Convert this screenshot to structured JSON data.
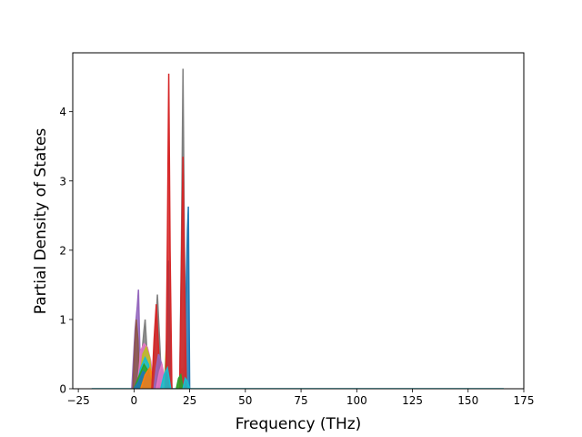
{
  "chart_data": {
    "type": "area",
    "title": "",
    "xlabel": "Frequency (THz)",
    "ylabel": "Partial Density of States",
    "xlim": [
      -27.5,
      175
    ],
    "ylim": [
      0,
      4.85
    ],
    "xticks": [
      -25,
      0,
      25,
      50,
      75,
      100,
      125,
      150,
      175
    ],
    "yticks": [
      0,
      1,
      2,
      3,
      4
    ],
    "grid": false,
    "legend": "none",
    "baseline_range": [
      -19,
      166
    ],
    "series": [
      {
        "color": "#9467bd",
        "x": [
          -1,
          0.5,
          1.5,
          2,
          2.6,
          3.5
        ],
        "y": [
          0,
          0.85,
          1.2,
          1.43,
          0.6,
          0
        ]
      },
      {
        "color": "#8c564b",
        "x": [
          -0.5,
          0.3,
          1,
          1.8,
          2.5
        ],
        "y": [
          0,
          0.6,
          1.0,
          0.7,
          0
        ]
      },
      {
        "color": "#7f7f7f",
        "x": [
          2.2,
          3.5,
          4.5,
          5,
          5.8,
          7
        ],
        "y": [
          0,
          0.5,
          0.85,
          1.0,
          0.55,
          0
        ]
      },
      {
        "color": "#e377c2",
        "x": [
          1.5,
          3,
          4.5,
          6,
          7.5,
          9
        ],
        "y": [
          0,
          0.55,
          0.65,
          0.6,
          0.4,
          0
        ]
      },
      {
        "color": "#bcbd22",
        "x": [
          2,
          4,
          5.5,
          7,
          8.5
        ],
        "y": [
          0,
          0.5,
          0.6,
          0.45,
          0
        ]
      },
      {
        "color": "#17becf",
        "x": [
          1,
          3,
          5,
          6.5,
          8
        ],
        "y": [
          0,
          0.3,
          0.45,
          0.35,
          0
        ]
      },
      {
        "color": "#2ca02c",
        "x": [
          0,
          2.5,
          4.5,
          6.5,
          8.5
        ],
        "y": [
          0,
          0.2,
          0.35,
          0.25,
          0
        ]
      },
      {
        "color": "#1f77b4",
        "x": [
          0,
          2,
          4,
          6,
          8,
          10
        ],
        "y": [
          0,
          0.1,
          0.25,
          0.2,
          0.1,
          0
        ]
      },
      {
        "color": "#ff7f0e",
        "x": [
          3,
          5,
          7,
          9,
          11
        ],
        "y": [
          0,
          0.2,
          0.3,
          0.15,
          0
        ]
      },
      {
        "color": "#7f7f7f",
        "x": [
          8.5,
          9.5,
          10.5,
          11.5,
          12.5
        ],
        "y": [
          0,
          0.8,
          1.36,
          0.7,
          0
        ]
      },
      {
        "color": "#d62728",
        "x": [
          8,
          9,
          10,
          11,
          12
        ],
        "y": [
          0,
          0.7,
          1.22,
          0.6,
          0
        ]
      },
      {
        "color": "#9467bd",
        "x": [
          9,
          10,
          11,
          12.5,
          13.5
        ],
        "y": [
          0,
          0.3,
          0.5,
          0.35,
          0
        ]
      },
      {
        "color": "#e377c2",
        "x": [
          10,
          11.5,
          12.5,
          13.5,
          14.5
        ],
        "y": [
          0,
          0.25,
          0.35,
          0.2,
          0
        ]
      },
      {
        "color": "#bcbd22",
        "x": [
          13.5,
          14.5,
          15.3,
          16,
          17
        ],
        "y": [
          0,
          0.6,
          1.15,
          0.6,
          0
        ]
      },
      {
        "color": "#1f77b4",
        "x": [
          14,
          15,
          15.5,
          16,
          17
        ],
        "y": [
          0,
          1.0,
          1.85,
          0.9,
          0
        ]
      },
      {
        "color": "#d62728",
        "x": [
          14.3,
          15,
          15.6,
          16.2,
          17
        ],
        "y": [
          0,
          2.2,
          4.55,
          2.0,
          0
        ]
      },
      {
        "color": "#17becf",
        "x": [
          12,
          13.5,
          15,
          16.5
        ],
        "y": [
          0,
          0.2,
          0.3,
          0
        ]
      },
      {
        "color": "#bcbd22",
        "x": [
          19.5,
          20.5,
          21.5,
          22.5,
          23.5
        ],
        "y": [
          0,
          0.15,
          0.3,
          0.15,
          0
        ]
      },
      {
        "color": "#1f77b4",
        "x": [
          22,
          23,
          24,
          24.4,
          25
        ],
        "y": [
          0,
          0.8,
          2.3,
          2.63,
          0
        ]
      },
      {
        "color": "#7f7f7f",
        "x": [
          20.5,
          21.3,
          22,
          22.6,
          23.5
        ],
        "y": [
          0,
          2.1,
          4.62,
          2.2,
          0
        ]
      },
      {
        "color": "#d62728",
        "x": [
          20.5,
          21.3,
          22,
          22.6,
          23.5
        ],
        "y": [
          0,
          1.8,
          3.35,
          1.7,
          0
        ]
      },
      {
        "color": "#2ca02c",
        "x": [
          19,
          20,
          21,
          22
        ],
        "y": [
          0,
          0.15,
          0.2,
          0
        ]
      },
      {
        "color": "#17becf",
        "x": [
          22,
          23,
          24,
          25
        ],
        "y": [
          0,
          0.15,
          0.1,
          0
        ]
      }
    ]
  }
}
